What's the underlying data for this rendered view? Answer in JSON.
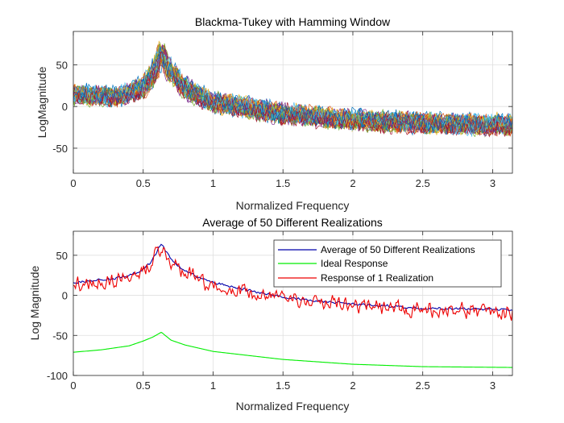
{
  "chart_data": [
    {
      "type": "line",
      "title": "Blackma-Tukey with Hamming Window",
      "xlabel": "Normalized Frequency",
      "ylabel": "LogMagnitude",
      "xlim": [
        0,
        3.1416
      ],
      "ylim": [
        -80,
        90
      ],
      "xticks": [
        0,
        0.5,
        1,
        1.5,
        2,
        2.5,
        3
      ],
      "xtick_labels": [
        "0",
        "0.5",
        "1",
        "1.5",
        "2",
        "2.5",
        "3"
      ],
      "yticks": [
        -50,
        0,
        50
      ],
      "ytick_labels": [
        "-50",
        "0",
        "50"
      ],
      "grid": true,
      "series_description": "50 overlaid spectral estimates (one per realization), each noisy around the mean trend",
      "realizations": 50,
      "mean_trend": {
        "x": [
          0,
          0.3,
          0.5,
          0.58,
          0.63,
          0.68,
          0.8,
          1.0,
          1.5,
          2.0,
          2.5,
          3.1416
        ],
        "y": [
          15,
          12,
          22,
          42,
          68,
          45,
          22,
          5,
          -8,
          -16,
          -20,
          -22
        ]
      },
      "noise_amplitude": 13,
      "colors": [
        "#0072bd",
        "#d95319",
        "#edb120",
        "#7e2f8e",
        "#77ac30",
        "#4dbeee",
        "#a2142f"
      ]
    },
    {
      "type": "line",
      "title": "Average of 50 Different Realizations",
      "xlabel": "Normalized Frequency",
      "ylabel": "Log Magnitude",
      "xlim": [
        0,
        3.1416
      ],
      "ylim": [
        -100,
        80
      ],
      "xticks": [
        0,
        0.5,
        1,
        1.5,
        2,
        2.5,
        3
      ],
      "xtick_labels": [
        "0",
        "0.5",
        "1",
        "1.5",
        "2",
        "2.5",
        "3"
      ],
      "yticks": [
        -100,
        -50,
        0,
        50
      ],
      "ytick_labels": [
        "-100",
        "-50",
        "0",
        "50"
      ],
      "grid": true,
      "legend_location": "top-right",
      "series": [
        {
          "name": "Average of 50 Different Realizations",
          "color": "#0000aa",
          "x": [
            0,
            0.1,
            0.2,
            0.3,
            0.4,
            0.5,
            0.55,
            0.6,
            0.63,
            0.66,
            0.7,
            0.75,
            0.8,
            0.9,
            1.0,
            1.2,
            1.5,
            2.0,
            2.5,
            3.1416
          ],
          "y": [
            16,
            18,
            19,
            21,
            25,
            32,
            40,
            55,
            65,
            56,
            45,
            37,
            30,
            22,
            16,
            8,
            -2,
            -11,
            -16,
            -18
          ],
          "noise_amplitude": 2
        },
        {
          "name": "Ideal Response",
          "color": "#00ee00",
          "x": [
            0,
            0.2,
            0.4,
            0.5,
            0.57,
            0.61,
            0.63,
            0.65,
            0.7,
            0.8,
            1.0,
            1.5,
            2.0,
            2.5,
            3.1416
          ],
          "y": [
            -71,
            -68,
            -63,
            -57,
            -52,
            -48,
            -46,
            -49,
            -56,
            -62,
            -70,
            -80,
            -86,
            -89,
            -90
          ],
          "noise_amplitude": 0
        },
        {
          "name": "Response of 1 Realization",
          "color": "#ee0000",
          "x": [
            0,
            0.1,
            0.2,
            0.3,
            0.4,
            0.5,
            0.55,
            0.6,
            0.63,
            0.66,
            0.7,
            0.75,
            0.8,
            0.9,
            1.0,
            1.2,
            1.5,
            2.0,
            2.5,
            3.1416
          ],
          "y": [
            14,
            16,
            18,
            20,
            24,
            30,
            38,
            52,
            60,
            54,
            42,
            34,
            28,
            19,
            12,
            5,
            -4,
            -13,
            -18,
            -20
          ],
          "noise_amplitude": 12
        }
      ]
    }
  ]
}
